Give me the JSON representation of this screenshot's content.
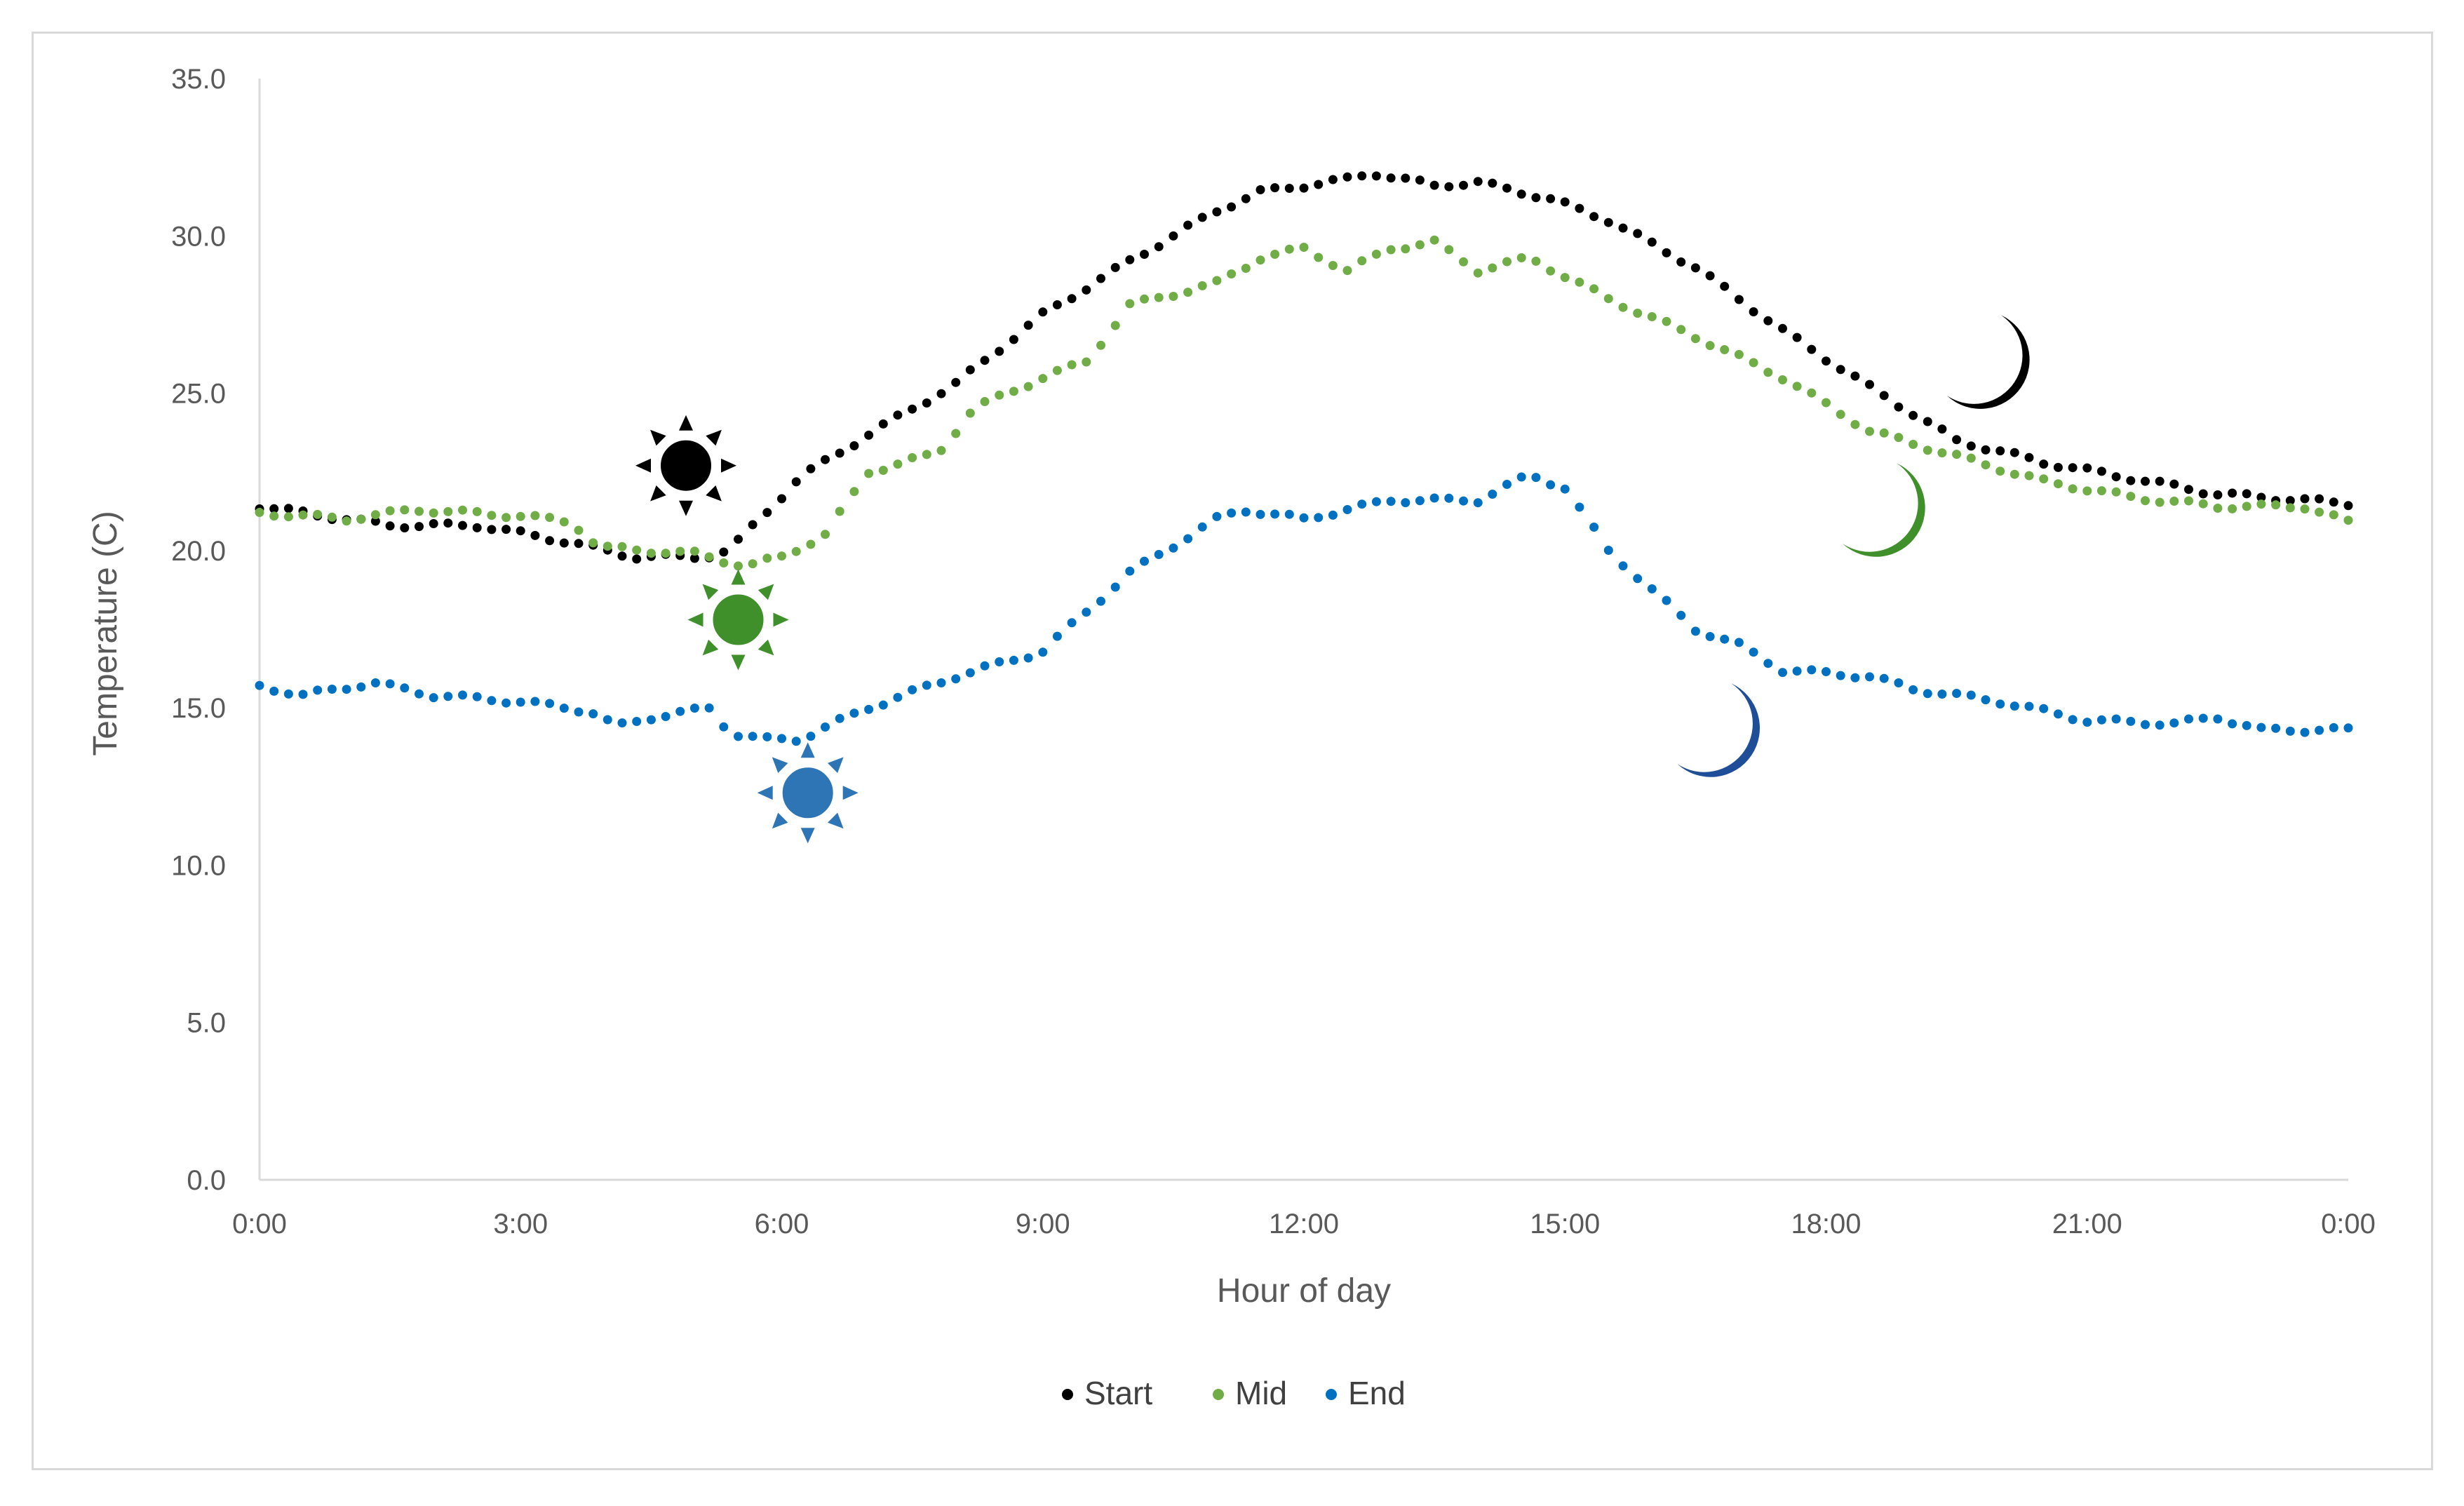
{
  "chart_data": {
    "type": "scatter",
    "title": "",
    "xlabel": "Hour of day",
    "ylabel": "Temperature (C)",
    "xlim": [
      0,
      24
    ],
    "ylim": [
      0,
      35
    ],
    "x_tick_labels": [
      "0:00",
      "3:00",
      "6:00",
      "9:00",
      "12:00",
      "15:00",
      "18:00",
      "21:00",
      "0:00"
    ],
    "y_tick_labels": [
      "0.0",
      "5.0",
      "10.0",
      "15.0",
      "20.0",
      "25.0",
      "30.0",
      "35.0"
    ],
    "grid": false,
    "legend_position": "bottom",
    "series": [
      {
        "name": "Start",
        "color": "#000000",
        "sunrise_icon": {
          "x": 4.9,
          "y": 22.7
        },
        "moon_icon": {
          "x": 19.7,
          "y": 26.2
        },
        "points": [
          [
            0,
            21.4
          ],
          [
            1,
            21.0
          ],
          [
            1.5,
            20.8
          ],
          [
            2.5,
            20.8
          ],
          [
            3.5,
            20.3
          ],
          [
            4.3,
            19.8
          ],
          [
            5.1,
            19.8
          ],
          [
            5.4,
            20.0
          ],
          [
            6.2,
            22.3
          ],
          [
            7.0,
            23.7
          ],
          [
            8.0,
            25.3
          ],
          [
            9.0,
            27.5
          ],
          [
            10.0,
            29.2
          ],
          [
            11.0,
            30.8
          ],
          [
            11.5,
            31.4
          ],
          [
            12.5,
            31.8
          ],
          [
            12.8,
            32.0
          ],
          [
            13.5,
            31.6
          ],
          [
            14.0,
            31.7
          ],
          [
            14.8,
            31.2
          ],
          [
            15.5,
            30.5
          ],
          [
            16.5,
            29.0
          ],
          [
            17.5,
            27.0
          ],
          [
            18.5,
            25.2
          ],
          [
            19.5,
            23.5
          ],
          [
            20.5,
            22.8
          ],
          [
            21.5,
            22.3
          ],
          [
            22.5,
            21.8
          ],
          [
            23.5,
            21.6
          ],
          [
            24,
            21.5
          ]
        ]
      },
      {
        "name": "Mid",
        "color": "#70ad47",
        "sunrise_icon": {
          "x": 5.5,
          "y": 17.8
        },
        "moon_icon": {
          "x": 18.5,
          "y": 21.5
        },
        "points": [
          [
            0,
            21.2
          ],
          [
            1,
            21.0
          ],
          [
            1.8,
            21.3
          ],
          [
            3.0,
            21.1
          ],
          [
            3.6,
            20.9
          ],
          [
            3.9,
            20.1
          ],
          [
            5.0,
            19.9
          ],
          [
            5.6,
            19.5
          ],
          [
            6.0,
            19.8
          ],
          [
            6.5,
            20.5
          ],
          [
            7.0,
            22.5
          ],
          [
            7.8,
            23.1
          ],
          [
            8.2,
            24.5
          ],
          [
            9.0,
            25.5
          ],
          [
            9.5,
            26.0
          ],
          [
            10.0,
            27.8
          ],
          [
            11.0,
            28.5
          ],
          [
            11.5,
            29.3
          ],
          [
            12.0,
            29.6
          ],
          [
            12.5,
            28.9
          ],
          [
            13.0,
            29.6
          ],
          [
            13.5,
            29.8
          ],
          [
            14.0,
            28.9
          ],
          [
            14.6,
            29.3
          ],
          [
            15.5,
            28.0
          ],
          [
            16.5,
            26.8
          ],
          [
            17.5,
            25.5
          ],
          [
            18.5,
            23.8
          ],
          [
            19.5,
            23.0
          ],
          [
            20.5,
            22.2
          ],
          [
            21.5,
            21.7
          ],
          [
            22.5,
            21.4
          ],
          [
            23.5,
            21.4
          ],
          [
            24,
            20.9
          ]
        ]
      },
      {
        "name": "End",
        "color": "#0070c0",
        "sunrise_icon": {
          "x": 6.3,
          "y": 12.3
        },
        "moon_icon": {
          "x": 16.6,
          "y": 14.5
        },
        "points": [
          [
            0,
            15.7
          ],
          [
            0.5,
            15.4
          ],
          [
            1.3,
            15.8
          ],
          [
            2.0,
            15.4
          ],
          [
            3.0,
            15.2
          ],
          [
            3.8,
            14.9
          ],
          [
            4.1,
            14.4
          ],
          [
            4.5,
            14.7
          ],
          [
            5.2,
            15.0
          ],
          [
            5.4,
            14.2
          ],
          [
            5.8,
            14.0
          ],
          [
            6.2,
            14.0
          ],
          [
            7.0,
            15.0
          ],
          [
            8.0,
            16.0
          ],
          [
            9.0,
            16.8
          ],
          [
            10.0,
            19.3
          ],
          [
            11.0,
            21.0
          ],
          [
            11.3,
            21.3
          ],
          [
            12.0,
            21.0
          ],
          [
            13.0,
            21.6
          ],
          [
            14.0,
            21.6
          ],
          [
            14.6,
            22.4
          ],
          [
            15.0,
            22.0
          ],
          [
            15.5,
            20.0
          ],
          [
            16.5,
            17.5
          ],
          [
            17.0,
            17.0
          ],
          [
            17.5,
            16.2
          ],
          [
            18.5,
            16.0
          ],
          [
            19.0,
            15.6
          ],
          [
            20.0,
            15.2
          ],
          [
            21.0,
            14.6
          ],
          [
            22.0,
            14.5
          ],
          [
            22.5,
            14.7
          ],
          [
            23.0,
            14.3
          ],
          [
            24,
            14.3
          ]
        ]
      }
    ]
  }
}
